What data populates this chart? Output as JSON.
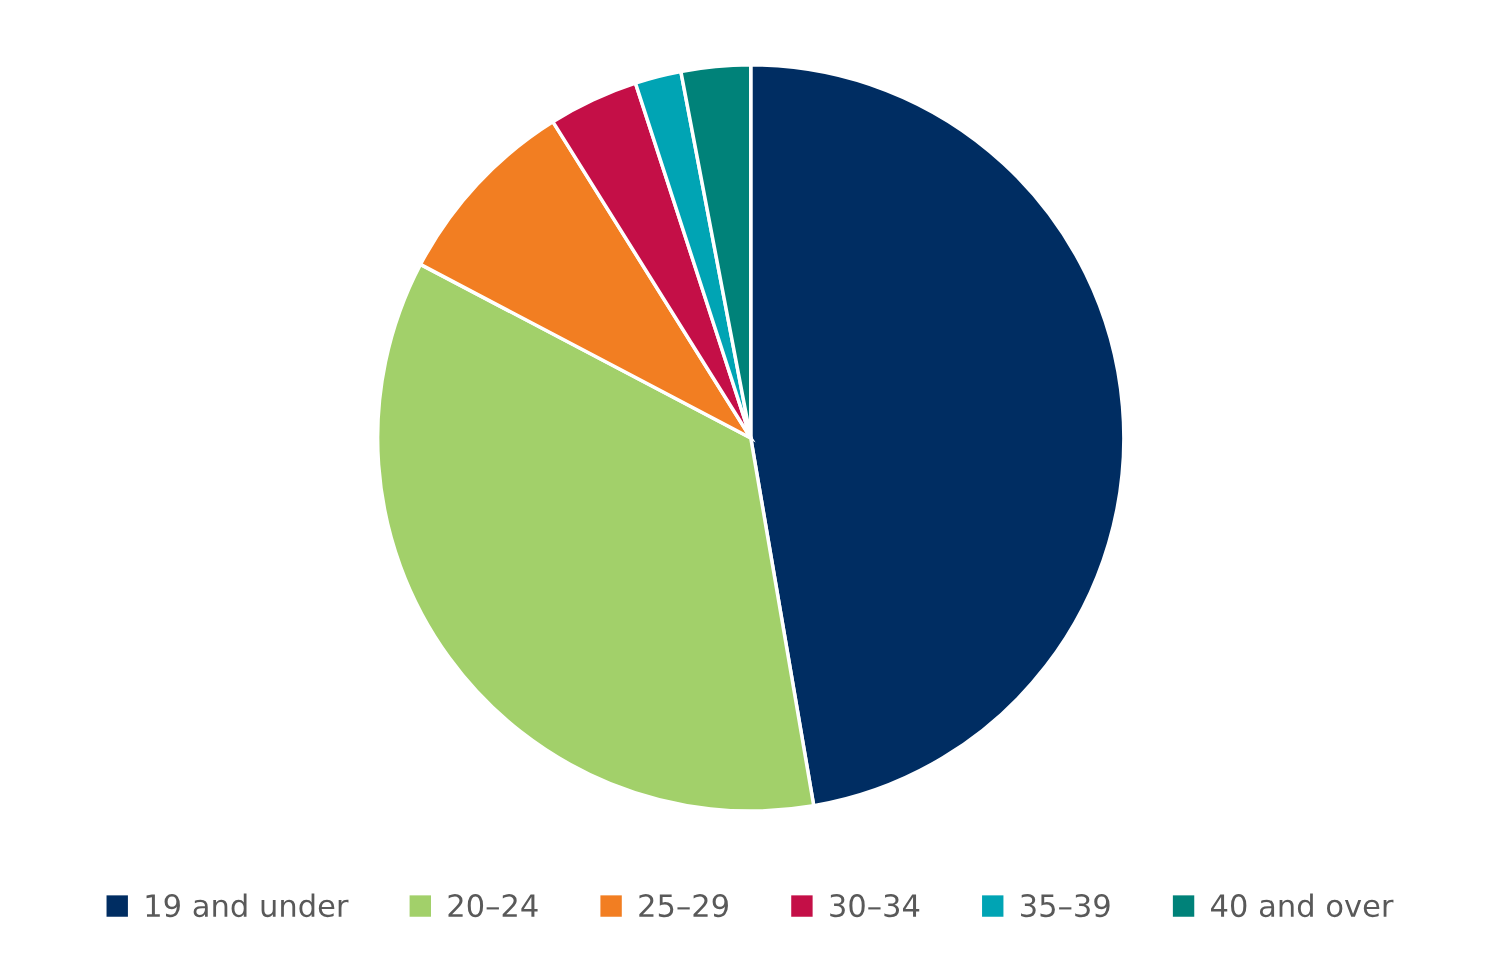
{
  "chart_data": {
    "type": "pie",
    "categories": [
      "19 and under",
      "20–24",
      "25–29",
      "30–34",
      "35–39",
      "40 and over"
    ],
    "values": [
      47.3,
      35.4,
      8.4,
      3.9,
      2.0,
      3.0
    ],
    "colors": [
      "#002d62",
      "#a2d06a",
      "#f27e22",
      "#c40f47",
      "#00a4b4",
      "#008279"
    ],
    "legend": "bottom"
  }
}
